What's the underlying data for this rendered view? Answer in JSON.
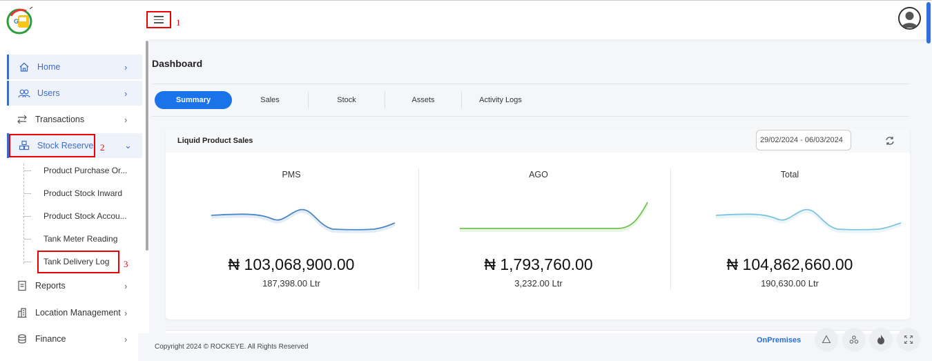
{
  "header": {
    "menu_annotation": "1"
  },
  "sidebar": {
    "items": [
      {
        "label": "Home",
        "icon": "home-icon"
      },
      {
        "label": "Users",
        "icon": "users-icon"
      },
      {
        "label": "Transactions",
        "icon": "transactions-icon"
      },
      {
        "label": "Stock Reserve",
        "icon": "stock-reserve-icon",
        "annotation": "2"
      },
      {
        "label": "Reports",
        "icon": "reports-icon"
      },
      {
        "label": "Location Management",
        "icon": "location-icon"
      },
      {
        "label": "Finance",
        "icon": "finance-icon"
      }
    ],
    "sub_items": [
      {
        "label": "Product Purchase Or..."
      },
      {
        "label": "Product Stock Inward"
      },
      {
        "label": "Product Stock Accou..."
      },
      {
        "label": "Tank Meter Reading"
      },
      {
        "label": "Tank Delivery Log",
        "annotation": "3"
      }
    ]
  },
  "main": {
    "title": "Dashboard",
    "tabs": [
      {
        "label": "Summary",
        "active": true
      },
      {
        "label": "Sales"
      },
      {
        "label": "Stock"
      },
      {
        "label": "Assets"
      },
      {
        "label": "Activity Logs"
      }
    ],
    "card": {
      "title": "Liquid Product Sales",
      "date_range": "29/02/2024 - 06/03/2024",
      "metrics": [
        {
          "name": "PMS",
          "amount": "₦ 103,068,900.00",
          "volume": "187,398.00 Ltr",
          "color": "#4a86c5"
        },
        {
          "name": "AGO",
          "amount": "₦ 1,793,760.00",
          "volume": "3,232.00 Ltr",
          "color": "#6cc24a"
        },
        {
          "name": "Total",
          "amount": "₦ 104,862,660.00",
          "volume": "190,630.00 Ltr",
          "color": "#7cc3de"
        }
      ]
    }
  },
  "footer": {
    "copyright": "Copyright 2024 © ROCKEYE. All Rights Reserved",
    "mode": "OnPremises"
  },
  "colors": {
    "accent": "#1a73e8",
    "annotation_red": "#e00000"
  }
}
